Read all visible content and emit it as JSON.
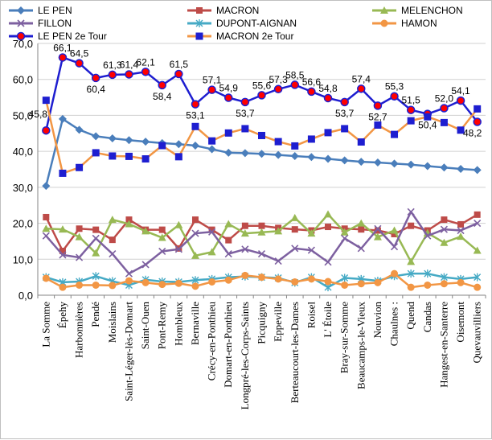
{
  "chart_data": {
    "type": "line",
    "title": "",
    "xlabel": "",
    "ylabel": "",
    "ylim": [
      0,
      70
    ],
    "yticks": [
      0,
      10,
      20,
      30,
      40,
      50,
      60,
      70
    ],
    "ytick_labels": [
      "0,0",
      "10,0",
      "20,0",
      "30,0",
      "40,0",
      "50,0",
      "60,0",
      "70,0"
    ],
    "grid": "horizontal",
    "legend_position": "top",
    "categories": [
      "La Somme",
      "Épehy",
      "Harbonnières",
      "Pendé",
      "Moislains",
      "Saint-Léger-lès-Domart",
      "Saint-Ouen",
      "Pont-Remy",
      "Hombleux",
      "Bernaville",
      "Crécy-en-Ponthieu",
      "Domart-en-Ponthieu",
      "Longpré-les-Corps-Saints",
      "Picquigny",
      "Eppeville",
      "Berteaucourt-les-Dames",
      "Roisel",
      "L' Étoile",
      "Bray-sur-Somme",
      "Beaucamps-le-Vieux",
      "Nouvion",
      "Chaulnes :",
      "Quend",
      "Candas",
      "Hangest-en-Santerre",
      "Oisemont",
      "Quevauvilliers"
    ],
    "series": [
      {
        "name": "LE PEN",
        "color": "#4A7EBB",
        "marker": "diamond",
        "values": [
          30.4,
          49.0,
          46.0,
          44.2,
          43.6,
          43.1,
          42.7,
          42.3,
          42.0,
          41.6,
          40.6,
          39.6,
          39.5,
          39.3,
          39.0,
          38.7,
          38.4,
          37.9,
          37.5,
          37.1,
          36.9,
          36.6,
          36.3,
          35.9,
          35.5,
          35.1,
          34.8
        ]
      },
      {
        "name": "MACRON",
        "color": "#BE4B48",
        "marker": "square",
        "values": [
          21.7,
          12.3,
          18.5,
          18.2,
          15.4,
          21.0,
          18.2,
          18.2,
          13.0,
          21.0,
          18.2,
          15.3,
          19.3,
          19.3,
          18.7,
          18.3,
          18.0,
          19.0,
          18.5,
          18.3,
          18.0,
          17.0,
          19.3,
          18.0,
          21.0,
          19.7,
          22.4
        ]
      },
      {
        "name": "MELENCHON",
        "color": "#98B954",
        "marker": "triangle",
        "values": [
          18.5,
          18.3,
          16.2,
          11.7,
          21.0,
          19.8,
          17.8,
          16.0,
          19.5,
          11.0,
          12.0,
          19.8,
          17.2,
          17.5,
          17.8,
          21.5,
          17.2,
          22.5,
          17.5,
          20.0,
          16.2,
          18.0,
          9.3,
          17.3,
          14.6,
          16.3,
          12.4
        ]
      },
      {
        "name": "FILLON",
        "color": "#7D60A0",
        "marker": "x",
        "values": [
          16.5,
          11.2,
          10.5,
          15.8,
          11.5,
          6.0,
          8.5,
          12.2,
          12.8,
          17.2,
          17.6,
          11.5,
          12.8,
          11.5,
          9.5,
          13.0,
          12.5,
          9.2,
          15.8,
          13.0,
          18.5,
          13.5,
          23.2,
          16.5,
          18.3,
          18.0,
          20.0
        ]
      },
      {
        "name": "DUPONT-AIGNAN",
        "color": "#46AAC5",
        "marker": "star",
        "values": [
          5.0,
          3.6,
          3.8,
          5.3,
          3.9,
          2.8,
          4.3,
          3.8,
          3.7,
          4.2,
          4.5,
          5.0,
          5.2,
          5.0,
          4.8,
          3.5,
          5.0,
          2.2,
          4.8,
          4.5,
          4.0,
          5.3,
          6.0,
          6.0,
          5.0,
          4.5,
          5.0
        ]
      },
      {
        "name": "HAMON",
        "color": "#F29644",
        "marker": "circle",
        "values": [
          4.7,
          2.2,
          2.8,
          2.8,
          2.7,
          4.0,
          3.5,
          3.0,
          3.3,
          2.5,
          3.7,
          4.2,
          5.5,
          5.0,
          4.5,
          3.7,
          4.5,
          3.8,
          2.8,
          3.2,
          3.5,
          6.0,
          2.2,
          2.8,
          3.2,
          3.5,
          2.2
        ]
      },
      {
        "name": "LE PEN 2e Tour",
        "color": "#1E1ED0",
        "marker": "red-circle",
        "marker_color": "#FF0000",
        "values": [
          45.8,
          66.1,
          64.5,
          60.4,
          61.3,
          61.4,
          62.1,
          58.4,
          61.5,
          53.1,
          57.1,
          54.9,
          53.7,
          55.6,
          57.3,
          58.5,
          56.6,
          54.8,
          53.7,
          57.4,
          52.7,
          55.3,
          51.5,
          50.4,
          52.0,
          54.1,
          48.2
        ],
        "data_labels": [
          "45,8",
          "66,1",
          "64,5",
          "60,4",
          "61,3",
          "61,4",
          "62,1",
          "58,4",
          "61,5",
          "53,1",
          "57,1",
          "54,9",
          "53,7",
          "55,6",
          "57,3",
          "58,5",
          "56,6",
          "54,8",
          "53,7",
          "57,4",
          "52,7",
          "55,3",
          "51,5",
          "50,4",
          "52,0",
          "54,1",
          "48,2"
        ]
      },
      {
        "name": "MACRON 2e Tour",
        "color": "#F29644",
        "marker": "blue-square",
        "marker_color": "#1E1ED0",
        "values": [
          54.2,
          33.9,
          35.5,
          39.6,
          38.7,
          38.6,
          37.9,
          41.6,
          38.5,
          46.9,
          42.9,
          45.1,
          46.3,
          44.4,
          42.7,
          41.5,
          43.4,
          45.2,
          46.3,
          42.6,
          47.3,
          44.7,
          48.5,
          49.6,
          48.0,
          45.9,
          51.8
        ]
      }
    ]
  }
}
